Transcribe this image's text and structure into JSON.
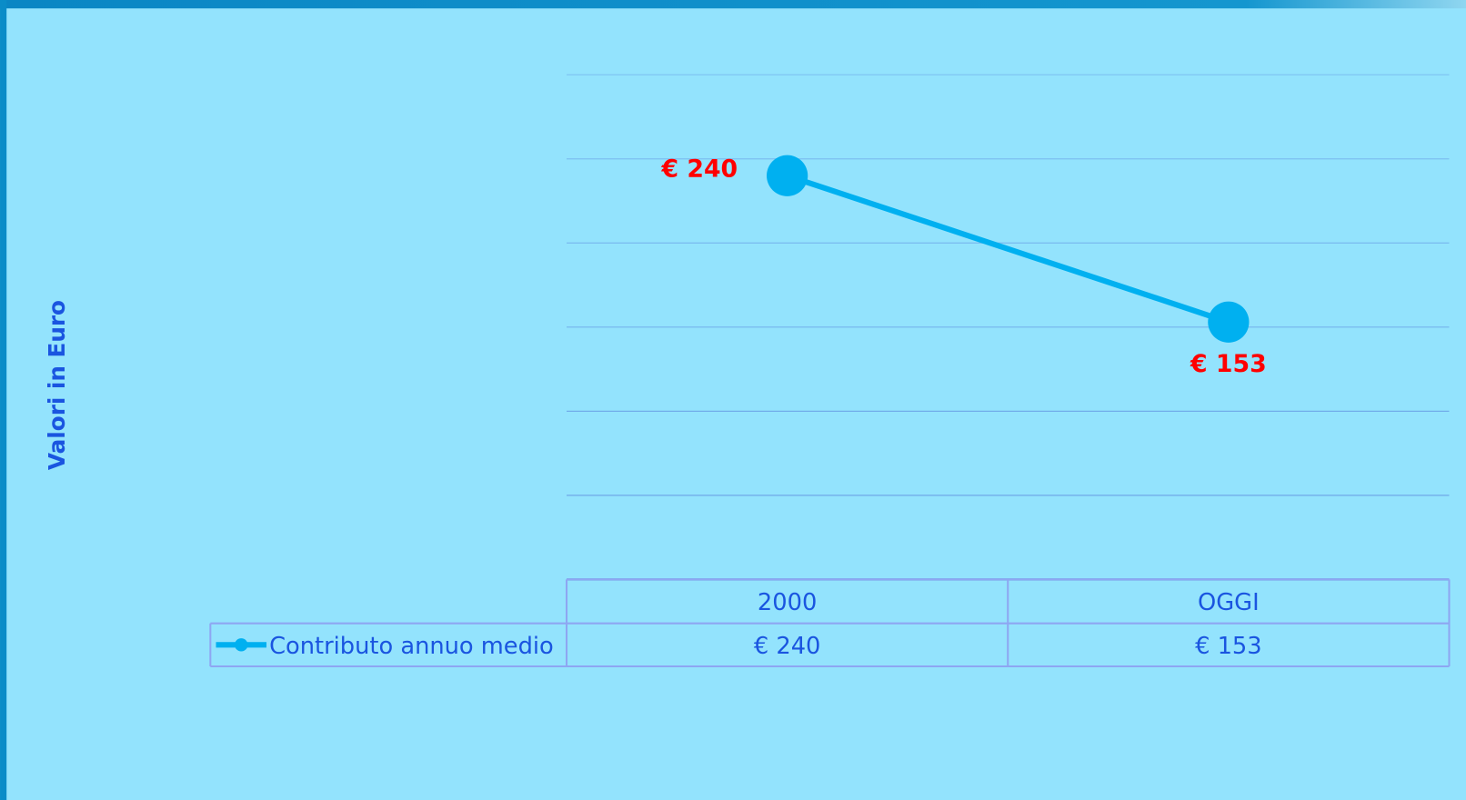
{
  "chart_data": {
    "type": "line",
    "y_label": "Valori in Euro",
    "categories": [
      "2000",
      "OGGI"
    ],
    "series": [
      {
        "name": "Contributo annuo medio",
        "color": "#00b0f0",
        "values": [
          240,
          153
        ],
        "value_labels": [
          "€ 240",
          "€ 153"
        ]
      }
    ],
    "ylim": [
      0,
      300
    ],
    "yticks": [
      0,
      50,
      100,
      150,
      200,
      250,
      300
    ],
    "grid": true,
    "label_color": "#ff0000"
  }
}
